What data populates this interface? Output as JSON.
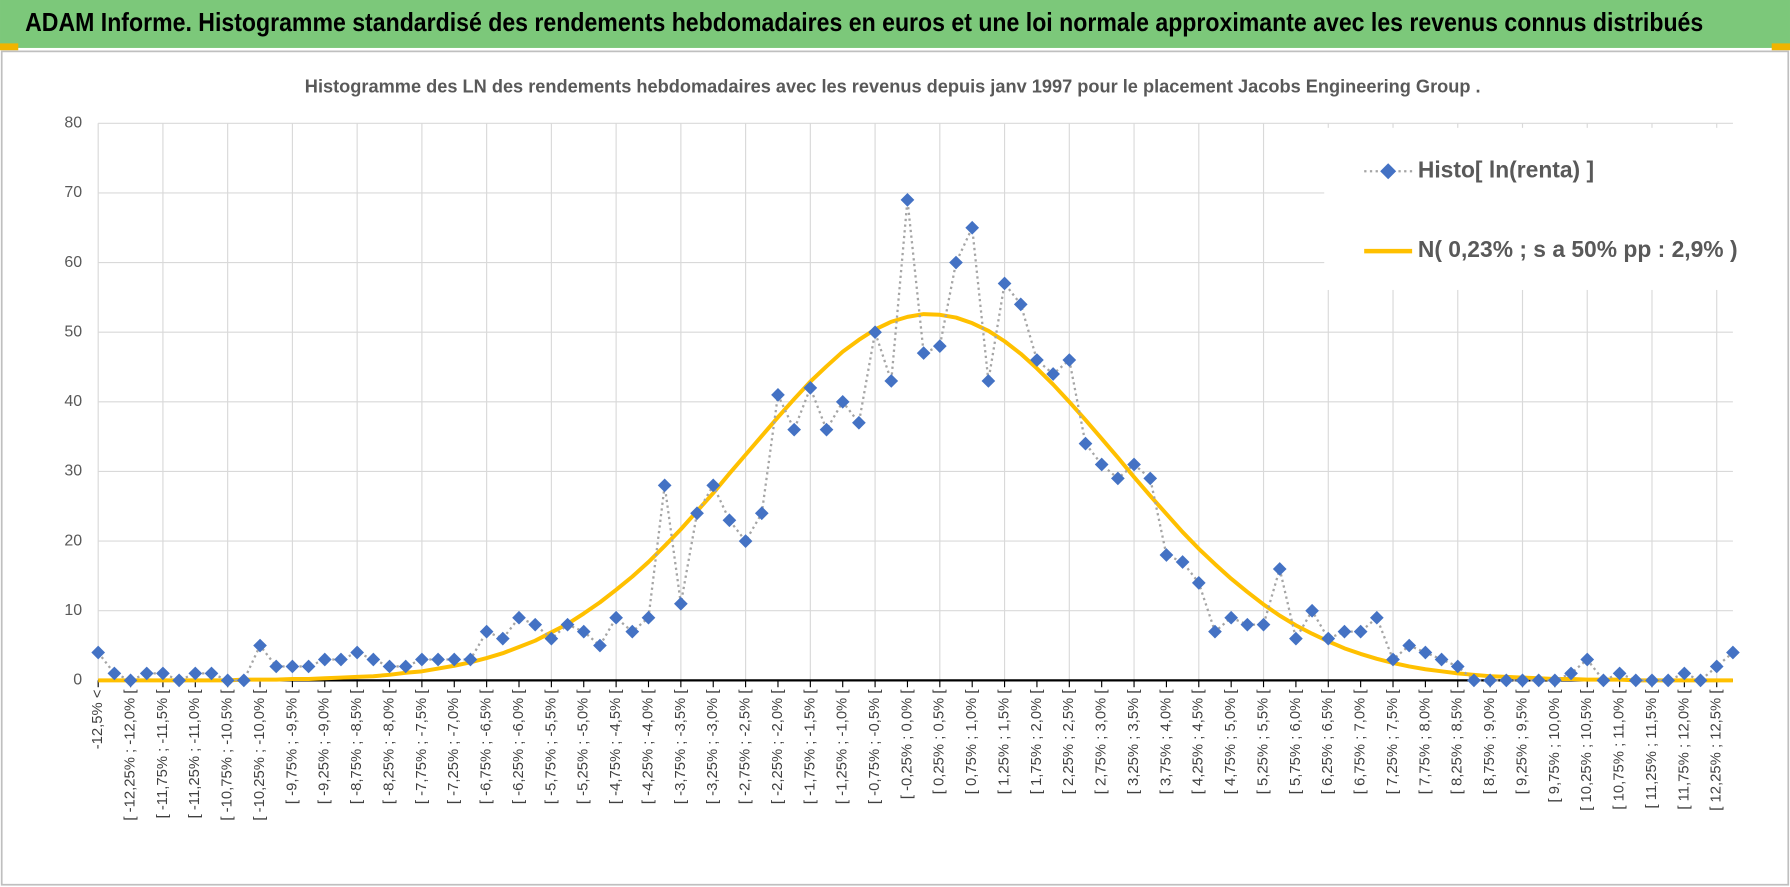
{
  "header": {
    "title": "ADAM Informe. Histogramme standardisé des rendements hebdomadaires en euros et une loi normale approximante avec les revenus connus distribués"
  },
  "chart_data": {
    "type": "line",
    "title": "Histogramme des LN des rendements hebdomadaires avec les revenus depuis janv 1997 pour le placement Jacobs Engineering Group .",
    "categories": [
      "-12,5% <",
      null,
      "[ -12,25% ; -12,0% [",
      null,
      "[ -11,75% ; -11,5% [",
      null,
      "[ -11,25% ; -11,0% [",
      null,
      "[ -10,75% ; -10,5% [",
      null,
      "[ -10,25% ; -10,0% [",
      null,
      "[ -9,75% ; -9,5% [",
      null,
      "[ -9,25% ; -9,0% [",
      null,
      "[ -8,75% ; -8,5% [",
      null,
      "[ -8,25% ; -8,0% [",
      null,
      "[ -7,75% ; -7,5% [",
      null,
      "[ -7,25% ; -7,0% [",
      null,
      "[ -6,75% ; -6,5% [",
      null,
      "[ -6,25% ; -6,0% [",
      null,
      "[ -5,75% ; -5,5% [",
      null,
      "[ -5,25% ; -5,0% [",
      null,
      "[ -4,75% ; -4,5% [",
      null,
      "[ -4,25% ; -4,0% [",
      null,
      "[ -3,75% ; -3,5% [",
      null,
      "[ -3,25% ; -3,0% [",
      null,
      "[ -2,75% ; -2,5% [",
      null,
      "[ -2,25% ; -2,0% [",
      null,
      "[ -1,75% ; -1,5% [",
      null,
      "[ -1,25% ; -1,0% [",
      null,
      "[ -0,75% ; -0,5% [",
      null,
      "[ -0,25% ; 0,0% [",
      null,
      "[ 0,25% ; 0,5% [",
      null,
      "[ 0,75% ; 1,0% [",
      null,
      "[ 1,25% ; 1,5% [",
      null,
      "[ 1,75% ; 2,0% [",
      null,
      "[ 2,25% ; 2,5% [",
      null,
      "[ 2,75% ; 3,0% [",
      null,
      "[ 3,25% ; 3,5% [",
      null,
      "[ 3,75% ; 4,0% [",
      null,
      "[ 4,25% ; 4,5% [",
      null,
      "[ 4,75% ; 5,0% [",
      null,
      "[ 5,25% ; 5,5% [",
      null,
      "[ 5,75% ; 6,0% [",
      null,
      "[ 6,25% ; 6,5% [",
      null,
      "[ 6,75% ; 7,0% [",
      null,
      "[ 7,25% ; 7,5% [",
      null,
      "[ 7,75% ; 8,0% [",
      null,
      "[ 8,25% ; 8,5% [",
      null,
      "[ 8,75% ; 9,0% [",
      null,
      "[ 9,25% ; 9,5% [",
      null,
      "[ 9,75% ; 10,0% [",
      null,
      "[ 10,25% ; 10,5% [",
      null,
      "[ 10,75% ; 11,0% [",
      null,
      "[ 11,25% ; 11,5% [",
      null,
      "[ 11,75% ; 12,0% [",
      null,
      "[ 12,25% ; 12,5% [",
      null
    ],
    "series": [
      {
        "name": "Histo[ ln(renta) ]",
        "color": "#4472c4",
        "line_color": "#a5a5a5",
        "line_style": "dotted",
        "marker": "diamond",
        "values": [
          4,
          1,
          0,
          1,
          1,
          0,
          1,
          1,
          0,
          0,
          5,
          2,
          2,
          2,
          3,
          3,
          4,
          3,
          2,
          2,
          3,
          3,
          3,
          3,
          7,
          6,
          9,
          8,
          6,
          8,
          7,
          5,
          9,
          7,
          9,
          28,
          11,
          24,
          28,
          23,
          20,
          24,
          41,
          36,
          42,
          36,
          40,
          37,
          50,
          43,
          69,
          47,
          48,
          60,
          65,
          43,
          57,
          54,
          46,
          44,
          46,
          34,
          31,
          29,
          31,
          29,
          18,
          17,
          14,
          7,
          9,
          8,
          8,
          16,
          6,
          10,
          6,
          7,
          7,
          9,
          3,
          5,
          4,
          3,
          2,
          0,
          0,
          0,
          0,
          0,
          0,
          1,
          3,
          0,
          1,
          0,
          0,
          0,
          1,
          0,
          2,
          4
        ]
      },
      {
        "name": "N( 0,23% ; s a 50% pp : 2,9% )",
        "color": "#ffc000",
        "line_style": "solid",
        "marker": "none",
        "values": [
          0,
          0,
          0,
          0,
          0,
          0,
          0,
          0,
          0,
          0.1,
          0.1,
          0.1,
          0.2,
          0.2,
          0.3,
          0.4,
          0.5,
          0.6,
          0.8,
          1.1,
          1.3,
          1.7,
          2.1,
          2.6,
          3.2,
          3.9,
          4.8,
          5.7,
          6.9,
          8.1,
          9.6,
          11.2,
          13.0,
          14.9,
          17.0,
          19.3,
          21.7,
          24.3,
          26.9,
          29.7,
          32.4,
          35.1,
          37.8,
          40.4,
          42.9,
          45.1,
          47.2,
          48.9,
          50.4,
          51.5,
          52.2,
          52.6,
          52.5,
          52.1,
          51.3,
          50.2,
          48.7,
          46.9,
          44.8,
          42.5,
          40.0,
          37.4,
          34.7,
          32.0,
          29.2,
          26.5,
          23.9,
          21.3,
          18.9,
          16.7,
          14.6,
          12.7,
          10.9,
          9.3,
          7.9,
          6.7,
          5.6,
          4.6,
          3.8,
          3.1,
          2.5,
          2.0,
          1.6,
          1.3,
          1.0,
          0.8,
          0.6,
          0.5,
          0.4,
          0.3,
          0.2,
          0.2,
          0.1,
          0.1,
          0.1,
          0,
          0,
          0,
          0,
          0,
          0,
          0
        ]
      }
    ],
    "ylim": [
      0,
      80
    ],
    "yticks": [
      0,
      10,
      20,
      30,
      40,
      50,
      60,
      70,
      80
    ],
    "grid": true,
    "legend": "top-right"
  }
}
